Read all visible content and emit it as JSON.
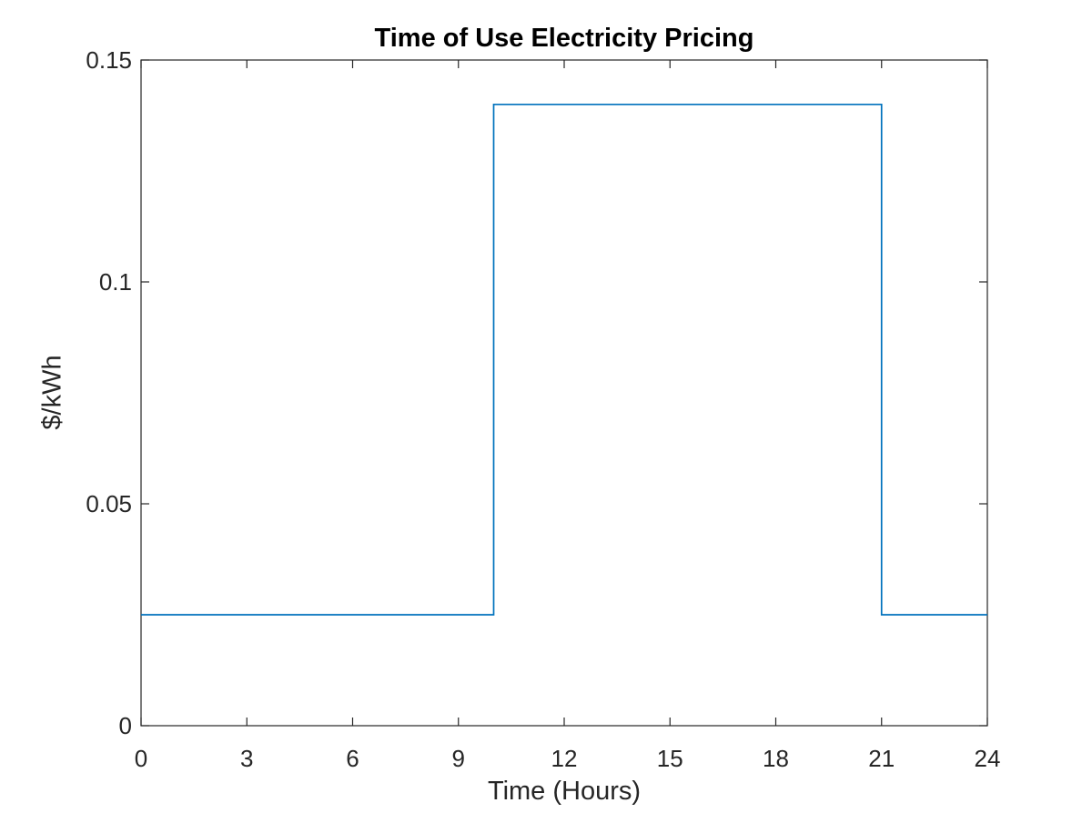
{
  "chart_data": {
    "type": "line",
    "subtype": "step",
    "title": "Time of Use Electricity Pricing",
    "xlabel": "Time (Hours)",
    "ylabel": "$/kWh",
    "xlim": [
      0,
      24
    ],
    "ylim": [
      0,
      0.15
    ],
    "xticks": [
      0,
      3,
      6,
      9,
      12,
      15,
      18,
      21,
      24
    ],
    "xtick_labels": [
      "0",
      "3",
      "6",
      "9",
      "12",
      "15",
      "18",
      "21",
      "24"
    ],
    "yticks": [
      0,
      0.05,
      0.1,
      0.15
    ],
    "ytick_labels": [
      "0",
      "0.05",
      "0.1",
      "0.15"
    ],
    "grid": false,
    "legend": null,
    "series": [
      {
        "name": "electricity-price",
        "color": "#0072BD",
        "points": [
          [
            0,
            0.025
          ],
          [
            10,
            0.025
          ],
          [
            10,
            0.14
          ],
          [
            21,
            0.14
          ],
          [
            21,
            0.025
          ],
          [
            24,
            0.025
          ]
        ]
      }
    ],
    "colors": {
      "line": "#0072BD",
      "axis": "#262626",
      "tick_label": "#262626",
      "title": "#000000",
      "background": "#FFFFFF"
    }
  }
}
